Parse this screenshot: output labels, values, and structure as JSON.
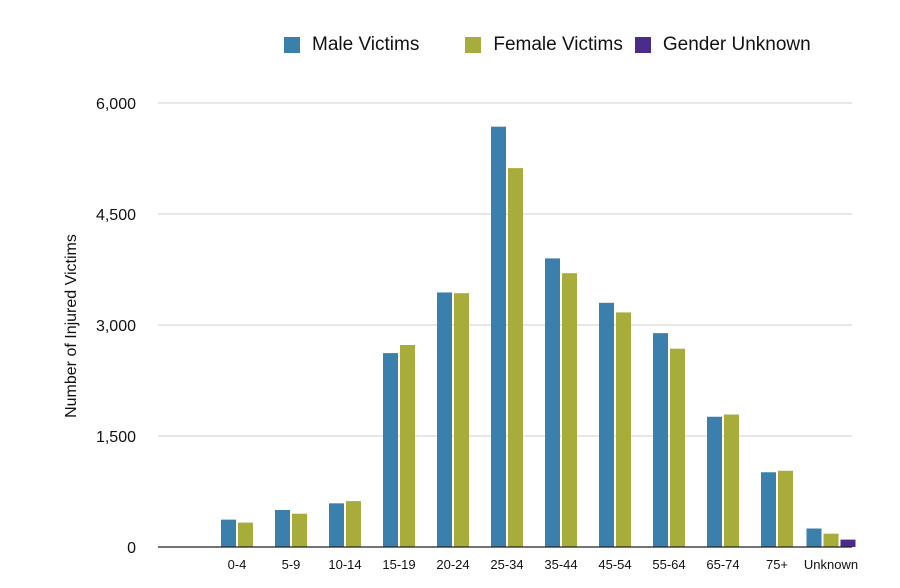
{
  "chart_data": {
    "type": "bar",
    "title": "",
    "xlabel": "",
    "ylabel": "Number of Injured Victims",
    "ylim": [
      0,
      6000
    ],
    "yticks": [
      0,
      1500,
      3000,
      4500,
      6000
    ],
    "ytick_labels": [
      "0",
      "1,500",
      "3,000",
      "4,500",
      "6,000"
    ],
    "grid": true,
    "legend_position": "top",
    "categories": [
      "0-4",
      "5-9",
      "10-14",
      "15-19",
      "20-24",
      "25-34",
      "35-44",
      "45-54",
      "55-64",
      "65-74",
      "75+",
      "Unknown"
    ],
    "series": [
      {
        "name": "Male Victims",
        "color": "#3b7fad",
        "values": [
          370,
          500,
          590,
          2620,
          3440,
          5680,
          3900,
          3300,
          2890,
          1760,
          1010,
          250
        ]
      },
      {
        "name": "Female Victims",
        "color": "#a8ac3a",
        "values": [
          330,
          450,
          620,
          2730,
          3430,
          5120,
          3700,
          3170,
          2680,
          1790,
          1030,
          180
        ]
      },
      {
        "name": "Gender Unknown",
        "color": "#4b2c8a",
        "values": [
          0,
          0,
          0,
          0,
          0,
          0,
          0,
          0,
          0,
          0,
          0,
          100
        ]
      }
    ]
  }
}
